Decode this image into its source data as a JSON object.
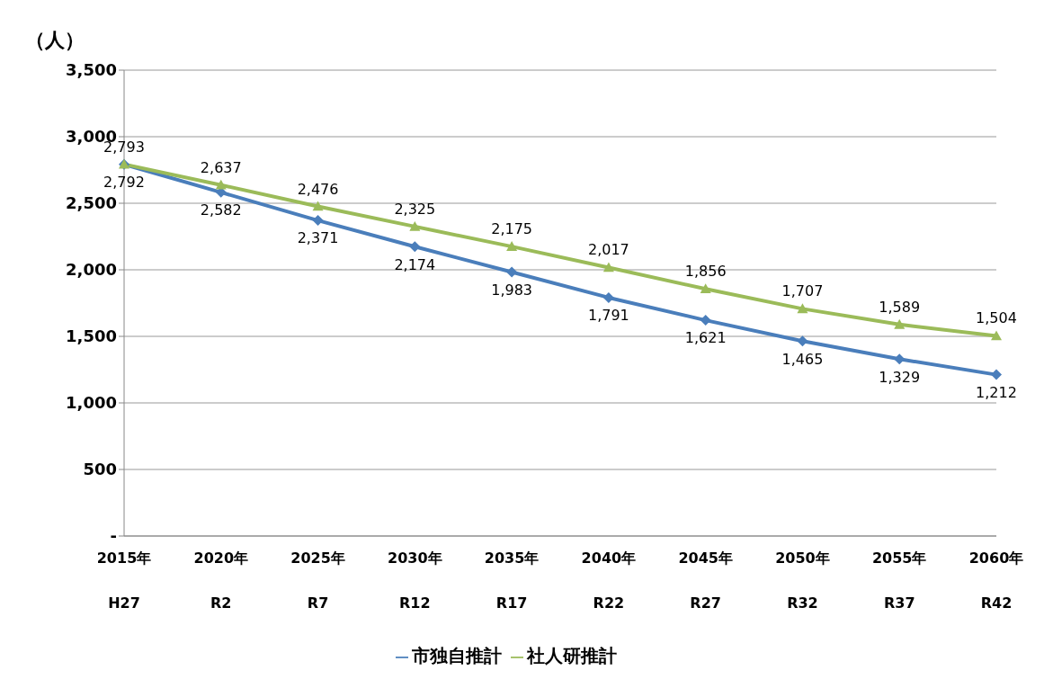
{
  "chart_data": {
    "type": "line",
    "ylabel": "（人）",
    "categories": [
      "2015年\nH27",
      "2020年\nR2",
      "2025年\nR7",
      "2030年\nR12",
      "2035年\nR17",
      "2040年\nR22",
      "2045年\nR27",
      "2050年\nR32",
      "2055年\nR37",
      "2060年\nR42"
    ],
    "series": [
      {
        "name": "市独自推計",
        "color": "#4a7ebb",
        "marker": "diamond",
        "values": [
          2792,
          2582,
          2371,
          2174,
          1983,
          1791,
          1621,
          1465,
          1329,
          1212
        ],
        "value_labels": [
          "2,792",
          "2,582",
          "2,371",
          "2,174",
          "1,983",
          "1,791",
          "1,621",
          "1,465",
          "1,329",
          "1,212"
        ]
      },
      {
        "name": "社人研推計",
        "color": "#9bbb59",
        "marker": "triangle",
        "values": [
          2793,
          2637,
          2476,
          2325,
          2175,
          2017,
          1856,
          1707,
          1589,
          1504
        ],
        "value_labels": [
          "2,793",
          "2,637",
          "2,476",
          "2,325",
          "2,175",
          "2,017",
          "1,856",
          "1,707",
          "1,589",
          "1,504"
        ]
      }
    ],
    "ylim": [
      0,
      3500
    ],
    "yticks": [
      {
        "value": 0,
        "label": "-"
      },
      500,
      {
        "value": 1000,
        "label": "1,000"
      },
      {
        "value": 1500,
        "label": "1,500"
      },
      {
        "value": 2000,
        "label": "2,000"
      },
      {
        "value": 2500,
        "label": "2,500"
      },
      {
        "value": 3000,
        "label": "3,000"
      },
      {
        "value": 3500,
        "label": "3,500"
      }
    ],
    "grid": "y",
    "legend": "bottom"
  }
}
